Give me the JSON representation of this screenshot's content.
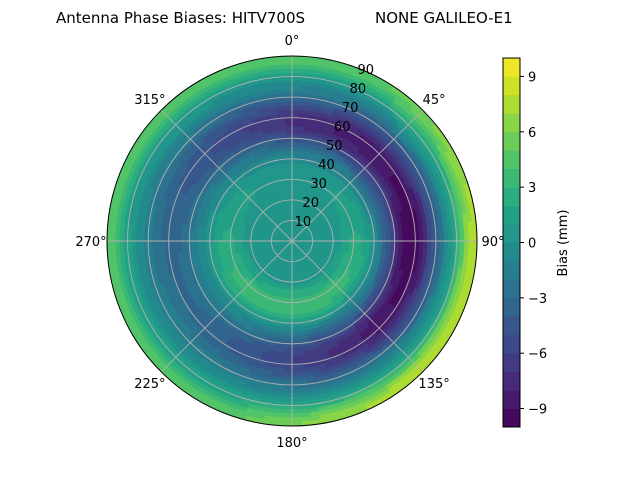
{
  "chart_data": {
    "type": "heatmap",
    "subtype": "polar-filled-contour",
    "title_left": "Antenna Phase Biases: HITV700S",
    "title_right": "NONE GALILEO-E1",
    "azimuth_labels": [
      "0°",
      "45°",
      "90°",
      "135°",
      "180°",
      "225°",
      "270°",
      "315°"
    ],
    "azimuth_label_values": [
      0,
      45,
      90,
      135,
      180,
      225,
      270,
      315
    ],
    "radial_labels": [
      "10",
      "20",
      "30",
      "40",
      "50",
      "60",
      "70",
      "80",
      "90"
    ],
    "radial_values": [
      10,
      20,
      30,
      40,
      50,
      60,
      70,
      80,
      90
    ],
    "radial_range": [
      0,
      90
    ],
    "theta_direction": "clockwise",
    "theta_zero": "top",
    "grid": true,
    "colorbar": {
      "label": "Bias (mm)",
      "range": [
        -10,
        10
      ],
      "tick_labels": [
        "−9",
        "−6",
        "−3",
        "0",
        "3",
        "6",
        "9"
      ],
      "tick_values": [
        -9,
        -6,
        -3,
        0,
        3,
        6,
        9
      ],
      "colormap": "viridis",
      "levels": 20
    },
    "field_description_values": {
      "center_bias": 0,
      "ring_min_bias_approx": -6,
      "outer_max_bias_approx": 8,
      "inner_warm_patch_bias_approx": 4
    }
  }
}
